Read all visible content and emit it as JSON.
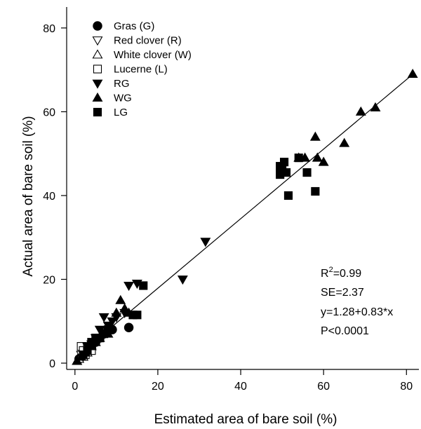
{
  "chart_data": {
    "type": "scatter",
    "xlabel": "Estimated area of bare soil (%)",
    "ylabel": "Actual area of bare soil (%)",
    "xlim": [
      -2,
      83
    ],
    "ylim": [
      -1.5,
      85
    ],
    "xticks": [
      0,
      20,
      40,
      60,
      80
    ],
    "yticks": [
      0,
      20,
      40,
      60,
      80
    ],
    "grid": false,
    "legend_position": "top-left",
    "series": [
      {
        "name": "Gras (G)",
        "marker": "circle",
        "fill": "#000000",
        "points": [
          [
            1,
            1
          ],
          [
            1.5,
            1.5
          ],
          [
            2,
            2
          ],
          [
            3,
            3
          ],
          [
            4,
            3.5
          ],
          [
            5,
            5
          ],
          [
            6,
            6
          ],
          [
            7,
            7
          ],
          [
            8,
            8
          ],
          [
            9,
            8
          ],
          [
            13,
            8.5
          ]
        ]
      },
      {
        "name": "Red clover (R)",
        "marker": "triangle-down",
        "fill": "#ffffff",
        "points": [
          [
            1.5,
            2
          ],
          [
            2.5,
            2.5
          ],
          [
            3,
            3
          ],
          [
            4,
            4.5
          ]
        ]
      },
      {
        "name": "White clover (W)",
        "marker": "triangle-up",
        "fill": "#ffffff",
        "points": [
          [
            0.5,
            0.5
          ],
          [
            1,
            1
          ],
          [
            2,
            1.5
          ],
          [
            3,
            2.5
          ]
        ]
      },
      {
        "name": "Lucerne (L)",
        "marker": "square",
        "fill": "#ffffff",
        "points": [
          [
            1.5,
            4
          ],
          [
            2,
            3
          ],
          [
            2.5,
            2
          ],
          [
            3,
            4
          ],
          [
            4,
            3
          ]
        ]
      },
      {
        "name": "RG",
        "marker": "triangle-down",
        "fill": "#000000",
        "points": [
          [
            3,
            4
          ],
          [
            5,
            6
          ],
          [
            6,
            8
          ],
          [
            7,
            11
          ],
          [
            8,
            9
          ],
          [
            9,
            10
          ],
          [
            10,
            11
          ],
          [
            12,
            12
          ],
          [
            13,
            18.5
          ],
          [
            15,
            19
          ],
          [
            26,
            20
          ],
          [
            31.5,
            29
          ]
        ]
      },
      {
        "name": "WG",
        "marker": "triangle-up",
        "fill": "#000000",
        "points": [
          [
            0.5,
            0.5
          ],
          [
            1.5,
            1.5
          ],
          [
            2.5,
            2.5
          ],
          [
            4,
            4
          ],
          [
            5,
            5
          ],
          [
            6,
            6
          ],
          [
            8,
            7
          ],
          [
            10,
            12
          ],
          [
            11,
            15
          ],
          [
            12,
            13
          ],
          [
            13,
            12
          ],
          [
            54,
            49
          ],
          [
            55.5,
            49
          ],
          [
            58,
            54
          ],
          [
            58.5,
            49
          ],
          [
            60,
            48
          ],
          [
            65,
            52.5
          ],
          [
            69,
            60
          ],
          [
            72.5,
            61
          ],
          [
            81.5,
            69
          ]
        ]
      },
      {
        "name": "LG",
        "marker": "square",
        "fill": "#000000",
        "points": [
          [
            2,
            2
          ],
          [
            3,
            3
          ],
          [
            4,
            5
          ],
          [
            5,
            6
          ],
          [
            6,
            6
          ],
          [
            7,
            7
          ],
          [
            8,
            8
          ],
          [
            14,
            11.5
          ],
          [
            15,
            11.5
          ],
          [
            16.5,
            18.5
          ],
          [
            49.5,
            45
          ],
          [
            49.5,
            47
          ],
          [
            50,
            46
          ],
          [
            50.5,
            48
          ],
          [
            51,
            45.5
          ],
          [
            51.5,
            40
          ],
          [
            54,
            49
          ],
          [
            56,
            45.5
          ],
          [
            58,
            41
          ]
        ]
      }
    ],
    "regression_line": {
      "intercept": 1.28,
      "slope": 0.83,
      "x_range": [
        0,
        81.5
      ]
    },
    "stats": {
      "r2_base": "R",
      "r2_sup": "2",
      "r2_value": "=0.99",
      "se": "SE=2.37",
      "equation": "y=1.28+0.83*x",
      "p": "P<0.0001"
    }
  }
}
